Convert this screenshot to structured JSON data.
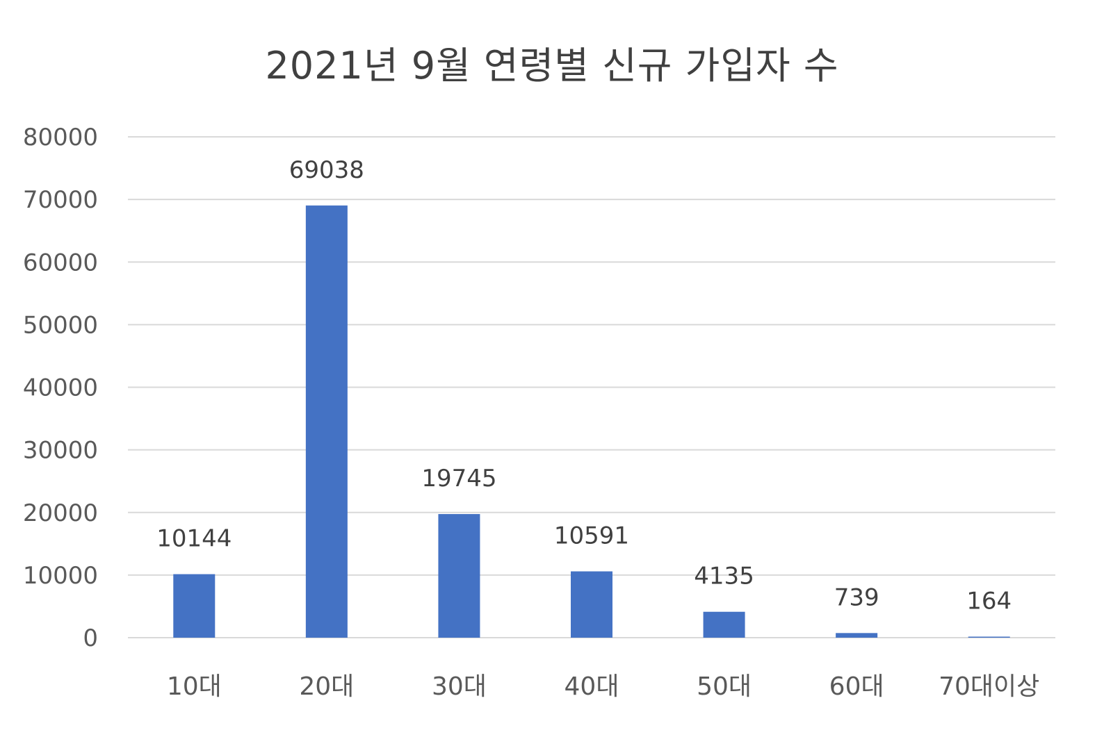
{
  "chart_data": {
    "type": "bar",
    "title": "2021년 9월 연령별 신규 가입자 수",
    "categories": [
      "10대",
      "20대",
      "30대",
      "40대",
      "50대",
      "60대",
      "70대이상"
    ],
    "values": [
      10144,
      69038,
      19745,
      10591,
      4135,
      739,
      164
    ],
    "data_labels": [
      "10144",
      "69038",
      "19745",
      "10591",
      "4135",
      "739",
      "164"
    ],
    "y_ticks": [
      "0",
      "10000",
      "20000",
      "30000",
      "40000",
      "50000",
      "60000",
      "70000",
      "80000"
    ],
    "ylim": [
      0,
      80000
    ],
    "xlabel": "",
    "ylabel": "",
    "grid": true,
    "legend": "none",
    "bar_color": "#4472c4"
  }
}
